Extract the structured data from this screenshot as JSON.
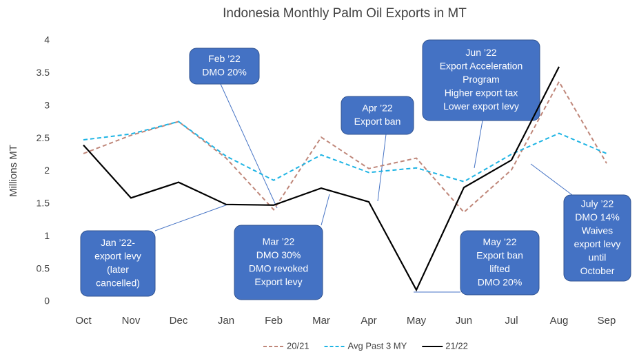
{
  "chart_data": {
    "type": "line",
    "title": "Indonesia Monthly Palm Oil Exports in MT",
    "y_label": "Millions MT",
    "categories": [
      "Oct",
      "Nov",
      "Dec",
      "Jan",
      "Feb",
      "Mar",
      "Apr",
      "May",
      "Jun",
      "Jul",
      "Aug",
      "Sep"
    ],
    "series": [
      {
        "name": "20/21",
        "color": "#bf8679",
        "dash": true,
        "values": [
          2.27,
          2.55,
          2.76,
          2.2,
          1.41,
          2.52,
          2.04,
          2.2,
          1.37,
          2.02,
          3.37,
          2.12
        ]
      },
      {
        "name": "Avg Past 3 MY",
        "color": "#1eb4e4",
        "dash": true,
        "values": [
          2.48,
          2.57,
          2.76,
          2.23,
          1.86,
          2.25,
          1.98,
          2.05,
          1.84,
          2.26,
          2.58,
          2.27
        ]
      },
      {
        "name": "21/22",
        "color": "#000000",
        "dash": false,
        "values": [
          2.4,
          1.59,
          1.83,
          1.49,
          1.48,
          1.74,
          1.53,
          0.18,
          1.75,
          2.17,
          3.6,
          null
        ]
      }
    ],
    "ylim": [
      0,
      4
    ],
    "yticks": [
      0,
      0.5,
      1,
      1.5,
      2,
      2.5,
      3,
      3.5,
      4
    ],
    "grid": false,
    "legend": "bottom",
    "annotations": [
      {
        "lines": [
          "Feb ’22",
          "DMO 20%"
        ]
      },
      {
        "lines": [
          "Apr ’22",
          "Export ban"
        ]
      },
      {
        "lines": [
          "Jun ’22",
          "Export Acceleration",
          "Program",
          "Higher export tax",
          "Lower export levy"
        ]
      },
      {
        "lines": [
          "Jan ’22-",
          "export levy",
          "(later",
          "cancelled)"
        ]
      },
      {
        "lines": [
          "Mar ’22",
          "DMO 30%",
          "DMO revoked",
          "Export levy"
        ]
      },
      {
        "lines": [
          "May ’22",
          "Export ban",
          "lifted",
          "DMO 20%"
        ]
      },
      {
        "lines": [
          "July ’22",
          "DMO 14%",
          "Waives",
          "export levy",
          "until",
          "October"
        ]
      }
    ]
  }
}
